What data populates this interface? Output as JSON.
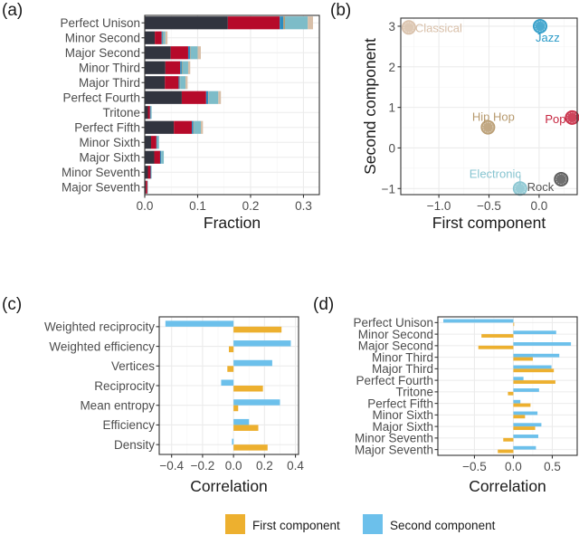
{
  "legend": {
    "items": [
      {
        "label": "First component",
        "color": "#EDB02F"
      },
      {
        "label": "Second component",
        "color": "#6CC0EB"
      }
    ]
  },
  "chart_data": [
    {
      "panel": "(a)",
      "type": "bar",
      "orientation": "horizontal",
      "stacked": true,
      "xlabel": "Fraction",
      "ylabel": "",
      "xlim": [
        0,
        0.33
      ],
      "xticks": [
        "0.0",
        "0.1",
        "0.2",
        "0.3"
      ],
      "xtick_values": [
        0,
        0.1,
        0.2,
        0.3
      ],
      "grid": true,
      "categories": [
        "Perfect Unison",
        "Minor Second",
        "Major Second",
        "Minor Third",
        "Major Third",
        "Perfect Fourth",
        "Tritone",
        "Perfect Fifth",
        "Minor Sixth",
        "Major Sixth",
        "Minor Seventh",
        "Major Seventh"
      ],
      "series": [
        {
          "name": "Rock",
          "color": "#31343F",
          "values": [
            0.157,
            0.019,
            0.049,
            0.039,
            0.038,
            0.07,
            0.006,
            0.055,
            0.012,
            0.018,
            0.006,
            0.002
          ]
        },
        {
          "name": "Pop",
          "color": "#B60A2A",
          "values": [
            0.098,
            0.013,
            0.033,
            0.028,
            0.026,
            0.046,
            0.004,
            0.034,
            0.01,
            0.011,
            0.005,
            0.003
          ]
        },
        {
          "name": "Jazz",
          "color": "#2C8CBE",
          "values": [
            0.007,
            0.002,
            0.004,
            0.003,
            0.002,
            0.004,
            0.001,
            0.003,
            0.001,
            0.002,
            0.001,
            0.0
          ]
        },
        {
          "name": "Hip Hop",
          "color": "#B79A6E",
          "values": [
            0.003,
            0.001,
            0.001,
            0.001,
            0.001,
            0.001,
            0.0,
            0.001,
            0.0,
            0.0,
            0.0,
            0.0
          ]
        },
        {
          "name": "Electronic",
          "color": "#7DBCC8",
          "values": [
            0.043,
            0.004,
            0.013,
            0.011,
            0.01,
            0.018,
            0.002,
            0.013,
            0.004,
            0.005,
            0.001,
            0.001
          ]
        },
        {
          "name": "Classical",
          "color": "#D8BFA8",
          "values": [
            0.01,
            0.004,
            0.006,
            0.004,
            0.004,
            0.005,
            0.0,
            0.004,
            0.0,
            0.0,
            0.0,
            0.0
          ]
        }
      ]
    },
    {
      "panel": "(b)",
      "type": "scatter",
      "xlabel": "First component",
      "ylabel": "Second component",
      "xlim": [
        -1.38,
        0.38
      ],
      "ylim": [
        -1.15,
        3.2
      ],
      "xticks": [
        "−1.0",
        "−0.5",
        "0.0"
      ],
      "xtick_values": [
        -1.0,
        -0.5,
        0.0
      ],
      "yticks": [
        "−1",
        "0",
        "1",
        "2",
        "3"
      ],
      "ytick_values": [
        -1,
        0,
        1,
        2,
        3
      ],
      "grid": true,
      "points": [
        {
          "label": "Classical",
          "x": -1.3,
          "y": 2.97,
          "color": "#D8BFA8",
          "label_pos": "right"
        },
        {
          "label": "Jazz",
          "x": 0.01,
          "y": 3.0,
          "color": "#2C9BC8",
          "label_pos": "below-right"
        },
        {
          "label": "Hip Hop",
          "x": -0.51,
          "y": 0.51,
          "color": "#B79A6E",
          "label_pos": "above"
        },
        {
          "label": "Pop",
          "x": 0.33,
          "y": 0.75,
          "color": "#C6253F",
          "label_pos": "left"
        },
        {
          "label": "Electronic",
          "x": -0.19,
          "y": -1.0,
          "color": "#86C4D0",
          "label_pos": "above-left"
        },
        {
          "label": "Rock",
          "x": 0.22,
          "y": -0.77,
          "color": "#555555",
          "label_pos": "below-left"
        }
      ]
    },
    {
      "panel": "(c)",
      "type": "bar",
      "orientation": "horizontal",
      "grouped": true,
      "xlabel": "Correlation",
      "ylabel": "",
      "xlim": [
        -0.48,
        0.42
      ],
      "xticks": [
        "−0.4",
        "−0.2",
        "0.0",
        "0.2",
        "0.4"
      ],
      "xtick_values": [
        -0.4,
        -0.2,
        0.0,
        0.2,
        0.4
      ],
      "grid": true,
      "categories": [
        "Weighted reciprocity",
        "Weighted efficiency",
        "Vertices",
        "Reciprocity",
        "Mean entropy",
        "Efficiency",
        "Density"
      ],
      "series": [
        {
          "name": "Second component",
          "color": "#6CC0EB",
          "values": [
            -0.44,
            0.37,
            0.25,
            -0.08,
            0.3,
            0.1,
            -0.01
          ]
        },
        {
          "name": "First component",
          "color": "#EDB02F",
          "values": [
            0.31,
            -0.03,
            -0.04,
            0.19,
            0.03,
            0.16,
            0.22
          ]
        }
      ]
    },
    {
      "panel": "(d)",
      "type": "bar",
      "orientation": "horizontal",
      "grouped": true,
      "xlabel": "Correlation",
      "ylabel": "",
      "xlim": [
        -0.97,
        0.82
      ],
      "xticks": [
        "−0.5",
        "0.0",
        "0.5"
      ],
      "xtick_values": [
        -0.5,
        0.0,
        0.5
      ],
      "grid": true,
      "categories": [
        "Perfect Unison",
        "Minor Second",
        "Major Second",
        "Minor Third",
        "Major Third",
        "Perfect Fourth",
        "Tritone",
        "Perfect Fifth",
        "Minor Sixth",
        "Major Sixth",
        "Minor Seventh",
        "Major Seventh"
      ],
      "series": [
        {
          "name": "Second component",
          "color": "#6CC0EB",
          "values": [
            -0.9,
            0.55,
            0.74,
            0.59,
            0.49,
            0.13,
            0.33,
            0.09,
            0.31,
            0.36,
            0.32,
            0.29
          ]
        },
        {
          "name": "First component",
          "color": "#EDB02F",
          "values": [
            0.01,
            -0.41,
            -0.45,
            0.25,
            0.52,
            0.54,
            -0.07,
            0.22,
            0.15,
            0.28,
            -0.13,
            -0.2
          ]
        }
      ]
    }
  ]
}
